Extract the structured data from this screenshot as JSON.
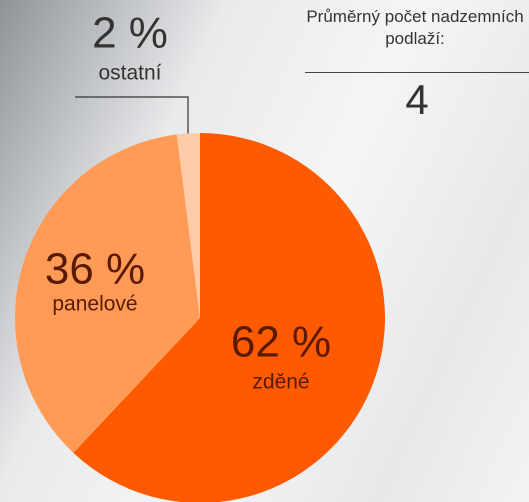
{
  "chart_data": {
    "type": "pie",
    "categories": [
      "zděné",
      "panelové",
      "ostatní"
    ],
    "values": [
      62,
      36,
      2
    ],
    "value_labels": [
      "62 %",
      "36 %",
      "2 %"
    ],
    "colors": [
      "#ff5a00",
      "#ff9b57",
      "#ffcba8"
    ]
  },
  "stat": {
    "label": "Průměrný počet nadzemních podlaží:",
    "value": 4
  }
}
